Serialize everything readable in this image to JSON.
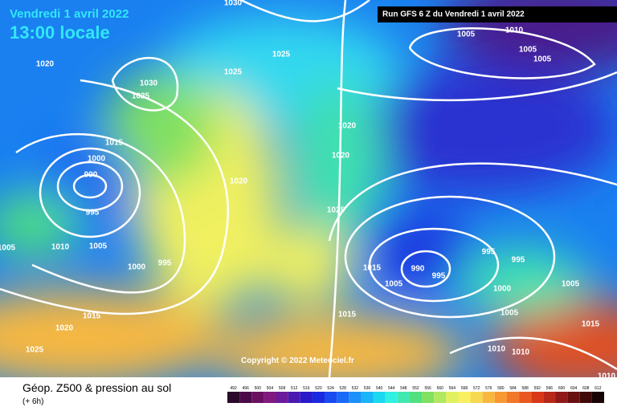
{
  "header": {
    "date": "Vendredi 1 avril 2022",
    "time": "13:00 locale",
    "run": "Run GFS 6 Z du Vendredi 1 avril 2022"
  },
  "copyright": "Copyright © 2022 Meteociel.fr",
  "footer": {
    "title": "Géop. Z500 & pression au sol",
    "lead": "(+ 6h)"
  },
  "legend": {
    "ticks": [
      492,
      496,
      500,
      504,
      508,
      512,
      516,
      520,
      524,
      528,
      532,
      536,
      540,
      544,
      548,
      552,
      556,
      560,
      564,
      568,
      572,
      576,
      580,
      584,
      588,
      592,
      596,
      600,
      604,
      608,
      612
    ],
    "colors": [
      "#2a0a2a",
      "#4a0a4a",
      "#6a1060",
      "#801a80",
      "#6a1a9a",
      "#4a1ab0",
      "#2a1ac8",
      "#1a2ae0",
      "#1a4af0",
      "#1a6af8",
      "#1a90f8",
      "#1ab4f8",
      "#1ad8f0",
      "#30f0e0",
      "#40e8b0",
      "#50e080",
      "#80e060",
      "#b0e860",
      "#e0f060",
      "#f8f060",
      "#f8d850",
      "#f8b840",
      "#f89830",
      "#f07828",
      "#e85820",
      "#d83818",
      "#b82818",
      "#901818",
      "#681010",
      "#400808",
      "#180404"
    ]
  },
  "isobar_labels": [
    1030,
    1020,
    1025,
    1025,
    1030,
    1025,
    1015,
    1000,
    990,
    995,
    1020,
    1020,
    1020,
    1025,
    1005,
    1010,
    1005,
    1000,
    995,
    1015,
    990,
    1005,
    995,
    995,
    995,
    1000,
    1005,
    1005,
    1015,
    1015,
    1015,
    1020,
    1025,
    1010,
    1010,
    1010,
    1005,
    1010,
    1005,
    1005
  ]
}
